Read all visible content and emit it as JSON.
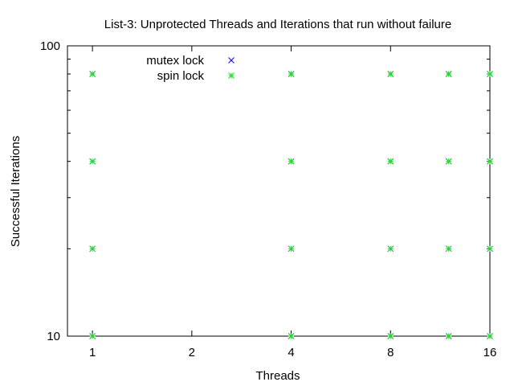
{
  "chart_data": {
    "type": "scatter",
    "title": "List-3: Unprotected Threads and Iterations that run without failure",
    "xlabel": "Threads",
    "ylabel": "Successful Iterations",
    "x_scale": "log2",
    "y_scale": "log10",
    "xlim": [
      0.84,
      16
    ],
    "ylim": [
      10,
      100
    ],
    "x_ticks": [
      1,
      2,
      4,
      8,
      16
    ],
    "x_tick_labels": [
      "1",
      "2",
      "4",
      "8",
      "16"
    ],
    "y_ticks": [
      10,
      100
    ],
    "y_tick_labels": [
      "10",
      "100"
    ],
    "grid": false,
    "legend_position": "top-left",
    "series": [
      {
        "name": "mutex lock",
        "color": "#0000ff",
        "marker": "x",
        "points": [
          [
            1,
            10
          ],
          [
            1,
            20
          ],
          [
            1,
            40
          ],
          [
            1,
            80
          ],
          [
            4,
            10
          ],
          [
            4,
            20
          ],
          [
            4,
            40
          ],
          [
            4,
            80
          ],
          [
            8,
            10
          ],
          [
            8,
            20
          ],
          [
            8,
            40
          ],
          [
            8,
            80
          ],
          [
            12,
            10
          ],
          [
            12,
            20
          ],
          [
            12,
            40
          ],
          [
            12,
            80
          ],
          [
            16,
            10
          ],
          [
            16,
            20
          ],
          [
            16,
            40
          ],
          [
            16,
            80
          ]
        ]
      },
      {
        "name": "spin lock",
        "color": "#22dd22",
        "marker": "asterisk",
        "points": [
          [
            1,
            10
          ],
          [
            1,
            20
          ],
          [
            1,
            40
          ],
          [
            1,
            80
          ],
          [
            4,
            10
          ],
          [
            4,
            20
          ],
          [
            4,
            40
          ],
          [
            4,
            80
          ],
          [
            8,
            10
          ],
          [
            8,
            20
          ],
          [
            8,
            40
          ],
          [
            8,
            80
          ],
          [
            12,
            10
          ],
          [
            12,
            20
          ],
          [
            12,
            40
          ],
          [
            12,
            80
          ],
          [
            16,
            10
          ],
          [
            16,
            20
          ],
          [
            16,
            40
          ],
          [
            16,
            80
          ]
        ]
      }
    ]
  }
}
